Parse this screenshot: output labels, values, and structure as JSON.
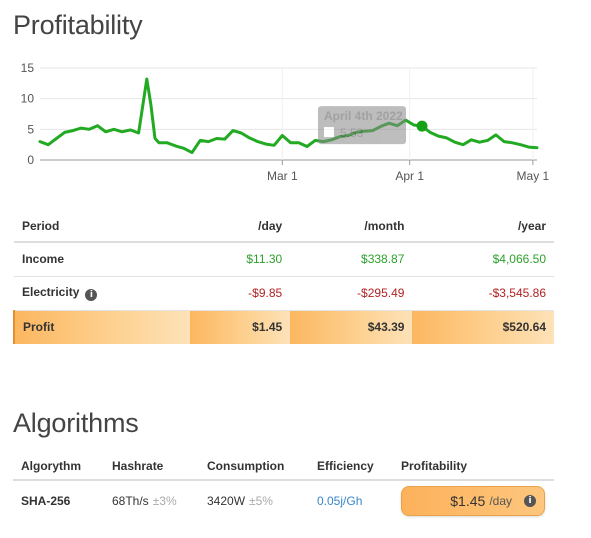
{
  "profitability": {
    "title": "Profitability",
    "columns": [
      "Period",
      "/day",
      "/month",
      "/year"
    ],
    "rows": {
      "income": {
        "label": "Income",
        "day": "$11.30",
        "month": "$338.87",
        "year": "$4,066.50"
      },
      "electricity": {
        "label": "Electricity",
        "day": "-$9.85",
        "month": "-$295.49",
        "year": "-$3,545.86"
      },
      "profit": {
        "label": "Profit",
        "day": "$1.45",
        "month": "$43.39",
        "year": "$520.64"
      }
    }
  },
  "chart_data": {
    "type": "line",
    "title": "",
    "xlabel": "",
    "ylabel": "",
    "ylim": [
      0,
      15
    ],
    "yticks": [
      0,
      5,
      10,
      15
    ],
    "xticks": [
      "Mar 1",
      "Apr 1",
      "May 1"
    ],
    "grid": true,
    "line_color": "#22aa22",
    "tooltip": {
      "date": "April 4th 2022",
      "value": "5.53"
    },
    "series": [
      {
        "x": [
          "2022-01-01",
          "2022-01-03",
          "2022-01-05",
          "2022-01-07",
          "2022-01-09",
          "2022-01-11",
          "2022-01-13",
          "2022-01-15",
          "2022-01-17",
          "2022-01-19",
          "2022-01-21",
          "2022-01-23",
          "2022-01-25",
          "2022-01-27",
          "2022-01-28",
          "2022-01-29",
          "2022-01-30",
          "2022-02-01",
          "2022-02-03",
          "2022-02-05",
          "2022-02-07",
          "2022-02-09",
          "2022-02-11",
          "2022-02-13",
          "2022-02-15",
          "2022-02-17",
          "2022-02-19",
          "2022-02-21",
          "2022-02-23",
          "2022-02-25",
          "2022-02-27",
          "2022-03-01",
          "2022-03-03",
          "2022-03-05",
          "2022-03-07",
          "2022-03-09",
          "2022-03-11",
          "2022-03-13",
          "2022-03-15",
          "2022-03-17",
          "2022-03-19",
          "2022-03-21",
          "2022-03-23",
          "2022-03-25",
          "2022-03-27",
          "2022-03-29",
          "2022-03-31",
          "2022-04-02",
          "2022-04-04",
          "2022-04-06",
          "2022-04-08",
          "2022-04-10",
          "2022-04-12",
          "2022-04-14",
          "2022-04-16",
          "2022-04-18",
          "2022-04-20",
          "2022-04-22",
          "2022-04-24",
          "2022-04-26",
          "2022-04-28",
          "2022-04-30",
          "2022-05-02"
        ],
        "y": [
          3.0,
          2.5,
          3.5,
          4.5,
          4.8,
          5.2,
          5.0,
          5.6,
          4.6,
          5.0,
          4.6,
          4.9,
          4.4,
          13.2,
          9.0,
          3.5,
          2.8,
          2.8,
          2.3,
          1.9,
          1.2,
          3.2,
          3.0,
          3.5,
          3.4,
          4.8,
          4.4,
          3.6,
          3.0,
          2.6,
          2.4,
          4.0,
          2.8,
          2.8,
          2.2,
          3.2,
          3.0,
          3.3,
          3.8,
          4.0,
          4.5,
          4.7,
          4.8,
          5.5,
          6.0,
          5.6,
          6.5,
          5.7,
          5.53,
          4.5,
          3.9,
          3.6,
          2.9,
          2.5,
          3.3,
          2.9,
          3.2,
          4.1,
          3.0,
          2.8,
          2.5,
          2.1,
          2.0
        ]
      }
    ]
  },
  "algorithms": {
    "title": "Algorithms",
    "columns": [
      "Algorythm",
      "Hashrate",
      "Consumption",
      "Efficiency",
      "Profitability"
    ],
    "row": {
      "algorithm": "SHA-256",
      "hashrate": "68Th/s",
      "hashrate_tol": "±3%",
      "consumption": "3420W",
      "consumption_tol": "±5%",
      "efficiency": "0.05j/Gh",
      "profitability_value": "$1.45",
      "profitability_unit": "/day"
    }
  },
  "icons": {
    "info": "i"
  }
}
